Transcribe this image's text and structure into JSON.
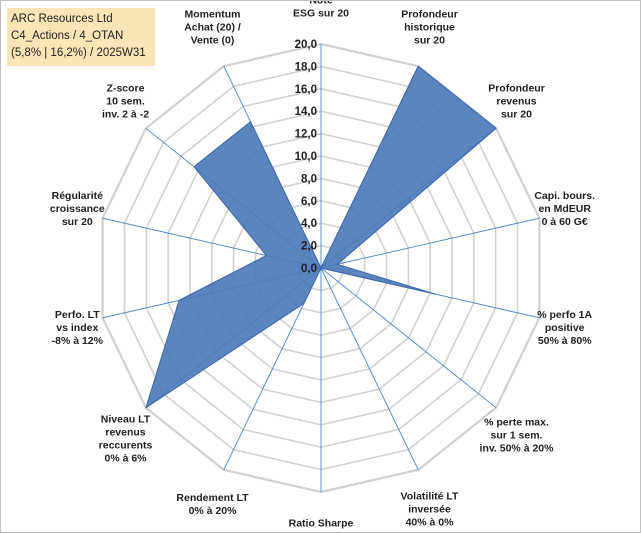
{
  "info": {
    "line1": "ARC Resources Ltd",
    "line2": "C4_Actions / 4_OTAN",
    "line3": "(5,8% | 16,2%) / 2025W31"
  },
  "colors": {
    "fill": "#4a78b9",
    "stroke": "#3b66a8",
    "grid": "#d0d0d0",
    "spoke": "#4a86c8",
    "info_bg": "#fbe5b6"
  },
  "chart_data": {
    "type": "radar",
    "rmax": 20,
    "ticks": [
      "0,0",
      "2,0",
      "4,0",
      "6,0",
      "8,0",
      "10,0",
      "12,0",
      "14,0",
      "16,0",
      "18,0",
      "20,0"
    ],
    "axes": [
      {
        "lines": [
          "Note",
          "ESG sur 20"
        ],
        "value": 0
      },
      {
        "lines": [
          "Profondeur",
          "historique",
          "sur 20"
        ],
        "value": 20
      },
      {
        "lines": [
          "Profondeur",
          "revenus",
          "sur 20"
        ],
        "value": 20
      },
      {
        "lines": [
          "Capi. bours.",
          "en MdEUR",
          "0 à 60 G€"
        ],
        "value": 1.5
      },
      {
        "lines": [
          "% perfo 1A",
          "positive",
          "50% à 80%"
        ],
        "value": 10.5
      },
      {
        "lines": [
          "% perte max.",
          "sur 1 sem.",
          "inv. 50% à 20%"
        ],
        "value": 0
      },
      {
        "lines": [
          "Volatilité LT",
          "inversée",
          "40% à 0%"
        ],
        "value": 0
      },
      {
        "lines": [
          "Ratio Sharpe",
          "0 à 1"
        ],
        "value": 0
      },
      {
        "lines": [
          "Rendement LT",
          "0% à 20%"
        ],
        "value": 3.5
      },
      {
        "lines": [
          "Niveau LT",
          "revenus",
          "reccurents",
          "0% à 6%"
        ],
        "value": 20
      },
      {
        "lines": [
          "Perfo. LT",
          "vs index",
          "-8% à 12%"
        ],
        "value": 13
      },
      {
        "lines": [
          "Régularité",
          "croissance",
          "sur 20"
        ],
        "value": 5
      },
      {
        "lines": [
          "Z-score",
          "10 sem.",
          "inv. 2 à -2"
        ],
        "value": 14.5
      },
      {
        "lines": [
          "Momentum",
          "Achat (20) /",
          "Vente (0)"
        ],
        "value": 14.5
      }
    ]
  }
}
